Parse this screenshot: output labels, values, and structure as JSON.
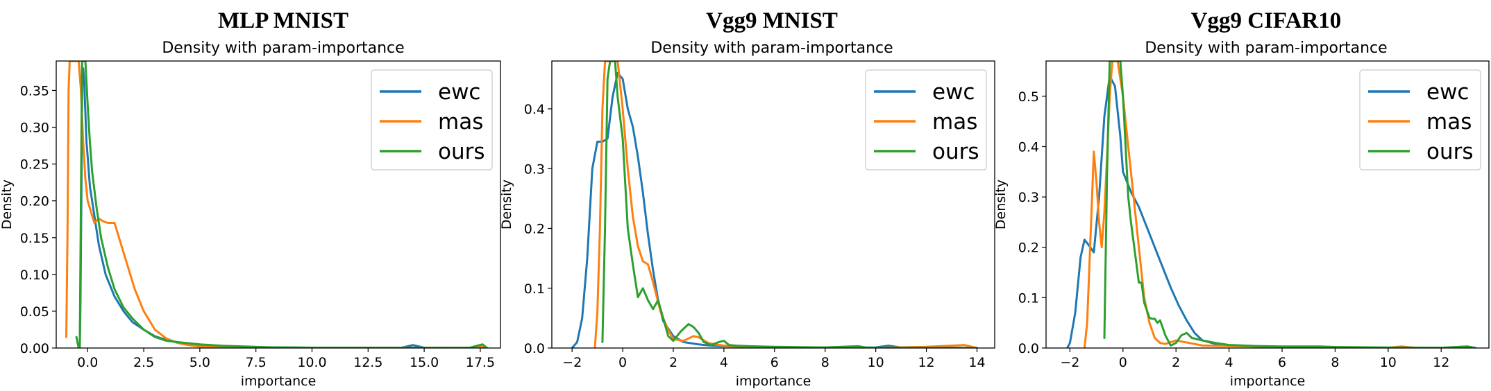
{
  "chart_data": [
    {
      "type": "line",
      "title": "MLP MNIST",
      "subtitle": "Density with param-importance",
      "xlabel": "importance",
      "ylabel": "Density",
      "xlim": [
        -1.4,
        18.4
      ],
      "ylim": [
        0,
        0.39
      ],
      "xticks": [
        0.0,
        2.5,
        5.0,
        7.5,
        10.0,
        12.5,
        15.0,
        17.5
      ],
      "xtick_labels": [
        "0.0",
        "2.5",
        "5.0",
        "7.5",
        "10.0",
        "12.5",
        "15.0",
        "17.5"
      ],
      "yticks": [
        0.0,
        0.05,
        0.1,
        0.15,
        0.2,
        0.25,
        0.3,
        0.35
      ],
      "ytick_labels": [
        "0.00",
        "0.05",
        "0.10",
        "0.15",
        "0.20",
        "0.25",
        "0.30",
        "0.35"
      ],
      "legend_position": "top-right",
      "series": [
        {
          "name": "ewc",
          "color": "#1f77b4",
          "x": [
            -0.35,
            -0.32,
            -0.28,
            -0.24,
            -0.2,
            -0.15,
            -0.1,
            -0.05,
            0.0,
            0.1,
            0.3,
            0.5,
            0.8,
            1.2,
            1.6,
            2.0,
            2.5,
            3.0,
            3.5,
            4.0,
            5.0,
            6.0,
            8.0,
            10.0,
            12.0,
            14.0,
            14.5,
            15.0,
            17.0,
            17.5,
            17.8
          ],
          "y": [
            0.0,
            0.06,
            0.2,
            0.38,
            0.38,
            0.36,
            0.32,
            0.28,
            0.26,
            0.22,
            0.18,
            0.14,
            0.1,
            0.07,
            0.05,
            0.035,
            0.025,
            0.016,
            0.011,
            0.008,
            0.004,
            0.002,
            0.001,
            0.0005,
            0.0004,
            0.0005,
            0.004,
            0.0005,
            0.0003,
            0.002,
            0.0
          ]
        },
        {
          "name": "mas",
          "color": "#ff7f0e",
          "x": [
            -0.95,
            -0.9,
            -0.85,
            -0.8,
            -0.6,
            -0.4,
            -0.3,
            -0.2,
            -0.1,
            0.0,
            0.1,
            0.3,
            0.5,
            0.7,
            0.9,
            1.2,
            1.5,
            1.8,
            2.1,
            2.5,
            3.0,
            3.5,
            4.0,
            4.5,
            5.0,
            6.0,
            8.0,
            10.0,
            12.0,
            14.0,
            17.0,
            17.5,
            17.8
          ],
          "y": [
            0.015,
            0.15,
            0.35,
            0.39,
            0.39,
            0.39,
            0.35,
            0.28,
            0.23,
            0.2,
            0.19,
            0.17,
            0.176,
            0.172,
            0.17,
            0.17,
            0.14,
            0.11,
            0.08,
            0.05,
            0.025,
            0.013,
            0.007,
            0.004,
            0.002,
            0.001,
            0.0004,
            0.0002,
            0.0002,
            0.0002,
            0.0002,
            0.002,
            0.0
          ]
        },
        {
          "name": "ours",
          "color": "#2ca02c",
          "x": [
            -0.5,
            -0.4,
            -0.35,
            -0.3,
            -0.25,
            -0.2,
            -0.1,
            0.0,
            0.1,
            0.2,
            0.4,
            0.6,
            0.9,
            1.2,
            1.6,
            2.0,
            2.5,
            3.0,
            3.5,
            4.0,
            5.0,
            6.0,
            8.0,
            10.0,
            12.0,
            14.0,
            16.0,
            17.0,
            17.6,
            17.8
          ],
          "y": [
            0.015,
            0.0,
            0.0,
            0.2,
            0.39,
            0.39,
            0.39,
            0.33,
            0.28,
            0.24,
            0.19,
            0.15,
            0.11,
            0.08,
            0.055,
            0.04,
            0.025,
            0.015,
            0.01,
            0.008,
            0.005,
            0.003,
            0.001,
            0.0005,
            0.0004,
            0.0003,
            0.0002,
            0.0002,
            0.005,
            0.0
          ]
        }
      ]
    },
    {
      "type": "line",
      "title": "Vgg9 MNIST",
      "subtitle": "Density with param-importance",
      "xlabel": "importance",
      "ylabel": "Density",
      "xlim": [
        -2.8,
        14.7
      ],
      "ylim": [
        0,
        0.48
      ],
      "xticks": [
        -2,
        0,
        2,
        4,
        6,
        8,
        10,
        12,
        14
      ],
      "xtick_labels": [
        "−2",
        "0",
        "2",
        "4",
        "6",
        "8",
        "10",
        "12",
        "14"
      ],
      "yticks": [
        0.0,
        0.1,
        0.2,
        0.3,
        0.4
      ],
      "ytick_labels": [
        "0.0",
        "0.1",
        "0.2",
        "0.3",
        "0.4"
      ],
      "legend_position": "top-right",
      "series": [
        {
          "name": "ewc",
          "color": "#1f77b4",
          "x": [
            -2.0,
            -1.8,
            -1.6,
            -1.4,
            -1.2,
            -1.0,
            -0.8,
            -0.6,
            -0.4,
            -0.2,
            0.0,
            0.2,
            0.4,
            0.6,
            0.8,
            1.0,
            1.2,
            1.4,
            1.6,
            2.0,
            2.4,
            3.0,
            3.5,
            4.0,
            5.0,
            6.0,
            7.0,
            8.0,
            9.0,
            10.0,
            10.5,
            11.0,
            12.0,
            13.0,
            14.0
          ],
          "y": [
            0.0,
            0.01,
            0.05,
            0.15,
            0.3,
            0.345,
            0.345,
            0.35,
            0.42,
            0.46,
            0.45,
            0.4,
            0.37,
            0.32,
            0.26,
            0.19,
            0.13,
            0.08,
            0.045,
            0.02,
            0.01,
            0.006,
            0.004,
            0.003,
            0.002,
            0.001,
            0.0005,
            0.0005,
            0.0005,
            0.001,
            0.004,
            0.001,
            0.0005,
            0.0003,
            0.0
          ]
        },
        {
          "name": "mas",
          "color": "#ff7f0e",
          "x": [
            -1.1,
            -1.0,
            -0.9,
            -0.8,
            -0.7,
            -0.6,
            -0.4,
            -0.2,
            0.0,
            0.2,
            0.4,
            0.6,
            0.8,
            1.0,
            1.2,
            1.5,
            1.8,
            2.0,
            2.4,
            2.8,
            3.0,
            3.4,
            4.0,
            5.0,
            6.0,
            8.0,
            10.0,
            12.0,
            13.0,
            13.5,
            14.0
          ],
          "y": [
            0.0,
            0.06,
            0.2,
            0.4,
            0.48,
            0.48,
            0.48,
            0.48,
            0.4,
            0.3,
            0.22,
            0.17,
            0.145,
            0.14,
            0.11,
            0.06,
            0.03,
            0.015,
            0.012,
            0.02,
            0.018,
            0.008,
            0.004,
            0.002,
            0.001,
            0.0005,
            0.0003,
            0.002,
            0.004,
            0.005,
            0.0
          ]
        },
        {
          "name": "ours",
          "color": "#2ca02c",
          "x": [
            -0.8,
            -0.7,
            -0.6,
            -0.5,
            -0.4,
            -0.3,
            -0.2,
            0.0,
            0.2,
            0.4,
            0.6,
            0.8,
            1.0,
            1.2,
            1.4,
            1.6,
            1.8,
            2.0,
            2.3,
            2.6,
            2.8,
            3.0,
            3.2,
            3.5,
            3.8,
            4.0,
            4.2,
            4.5,
            5.0,
            6.0,
            8.0,
            9.3,
            9.6,
            10.0,
            12.0,
            14.0
          ],
          "y": [
            0.01,
            0.2,
            0.45,
            0.48,
            0.48,
            0.48,
            0.42,
            0.35,
            0.2,
            0.14,
            0.085,
            0.1,
            0.08,
            0.065,
            0.08,
            0.05,
            0.02,
            0.012,
            0.028,
            0.04,
            0.035,
            0.025,
            0.01,
            0.005,
            0.01,
            0.012,
            0.005,
            0.004,
            0.003,
            0.002,
            0.001,
            0.003,
            0.001,
            0.0005,
            0.0003,
            0.0
          ]
        }
      ]
    },
    {
      "type": "line",
      "title": "Vgg9 CIFAR10",
      "subtitle": "Density with param-importance",
      "xlabel": "importance",
      "ylabel": "Density",
      "xlim": [
        -2.9,
        13.8
      ],
      "ylim": [
        0,
        0.57
      ],
      "xticks": [
        -2,
        0,
        2,
        4,
        6,
        8,
        10,
        12
      ],
      "xtick_labels": [
        "−2",
        "0",
        "2",
        "4",
        "6",
        "8",
        "10",
        "12"
      ],
      "yticks": [
        0.0,
        0.1,
        0.2,
        0.3,
        0.4,
        0.5
      ],
      "ytick_labels": [
        "0.0",
        "0.1",
        "0.2",
        "0.3",
        "0.4",
        "0.5"
      ],
      "legend_position": "top-right",
      "series": [
        {
          "name": "ewc",
          "color": "#1f77b4",
          "x": [
            -2.1,
            -2.0,
            -1.8,
            -1.6,
            -1.45,
            -1.3,
            -1.1,
            -0.9,
            -0.7,
            -0.5,
            -0.3,
            -0.1,
            0.0,
            0.3,
            0.6,
            0.9,
            1.2,
            1.5,
            1.8,
            2.1,
            2.4,
            2.7,
            3.0,
            3.5,
            4.0,
            5.0,
            6.0,
            8.0,
            10.0,
            12.0,
            13.0,
            13.3
          ],
          "y": [
            0.0,
            0.01,
            0.07,
            0.18,
            0.215,
            0.205,
            0.19,
            0.3,
            0.46,
            0.54,
            0.52,
            0.42,
            0.35,
            0.31,
            0.28,
            0.24,
            0.2,
            0.16,
            0.12,
            0.085,
            0.055,
            0.03,
            0.015,
            0.008,
            0.005,
            0.003,
            0.002,
            0.001,
            0.0005,
            0.0003,
            0.003,
            0.0
          ]
        },
        {
          "name": "mas",
          "color": "#ff7f0e",
          "x": [
            -1.45,
            -1.35,
            -1.2,
            -1.1,
            -1.0,
            -0.9,
            -0.8,
            -0.7,
            -0.6,
            -0.5,
            -0.4,
            -0.3,
            -0.2,
            0.0,
            0.2,
            0.4,
            0.6,
            0.8,
            1.0,
            1.2,
            1.4,
            1.6,
            2.0,
            2.5,
            3.0,
            4.0,
            5.0,
            6.0,
            8.0,
            10.0,
            10.5,
            11.0,
            12.0,
            13.0
          ],
          "y": [
            0.0,
            0.05,
            0.25,
            0.39,
            0.33,
            0.25,
            0.2,
            0.27,
            0.38,
            0.5,
            0.57,
            0.57,
            0.57,
            0.5,
            0.4,
            0.3,
            0.2,
            0.1,
            0.05,
            0.02,
            0.01,
            0.008,
            0.015,
            0.01,
            0.005,
            0.004,
            0.003,
            0.002,
            0.001,
            0.0005,
            0.003,
            0.0005,
            0.0003,
            0.0
          ]
        },
        {
          "name": "ours",
          "color": "#2ca02c",
          "x": [
            -0.7,
            -0.6,
            -0.5,
            -0.4,
            -0.3,
            -0.2,
            -0.1,
            0.0,
            0.1,
            0.2,
            0.3,
            0.4,
            0.5,
            0.6,
            0.7,
            0.8,
            0.9,
            1.0,
            1.1,
            1.2,
            1.3,
            1.4,
            1.5,
            1.6,
            1.7,
            1.8,
            2.0,
            2.2,
            2.4,
            2.6,
            3.0,
            3.5,
            4.0,
            5.0,
            6.0,
            7.5,
            8.0,
            10.0,
            12.0,
            13.0,
            13.3
          ],
          "y": [
            0.02,
            0.35,
            0.57,
            0.57,
            0.57,
            0.57,
            0.57,
            0.5,
            0.4,
            0.3,
            0.25,
            0.21,
            0.17,
            0.13,
            0.13,
            0.09,
            0.075,
            0.06,
            0.058,
            0.058,
            0.05,
            0.055,
            0.04,
            0.025,
            0.015,
            0.005,
            0.01,
            0.025,
            0.03,
            0.02,
            0.015,
            0.01,
            0.006,
            0.004,
            0.003,
            0.003,
            0.002,
            0.001,
            0.0005,
            0.003,
            0.0
          ]
        }
      ]
    }
  ]
}
